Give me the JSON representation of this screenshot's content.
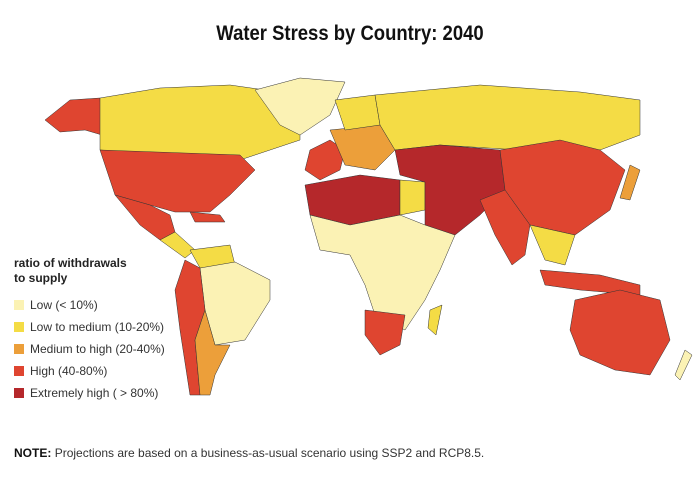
{
  "title": "Water Stress by Country: 2040",
  "legend": {
    "title_line1": "ratio of withdrawals",
    "title_line2": "to supply",
    "items": [
      {
        "label": "Low (< 10%)",
        "color": "#fbf2b4"
      },
      {
        "label": "Low to medium (10-20%)",
        "color": "#f4dc45"
      },
      {
        "label": "Medium to high  (20-40%)",
        "color": "#ec9f3a"
      },
      {
        "label": "High (40-80%)",
        "color": "#df4530"
      },
      {
        "label": "Extremely high ( > 80%)",
        "color": "#b5282b"
      }
    ]
  },
  "note": {
    "label": "NOTE:",
    "text": "Projections are based on a business-as-usual scenario using SSP2 and RCP8.5."
  }
}
